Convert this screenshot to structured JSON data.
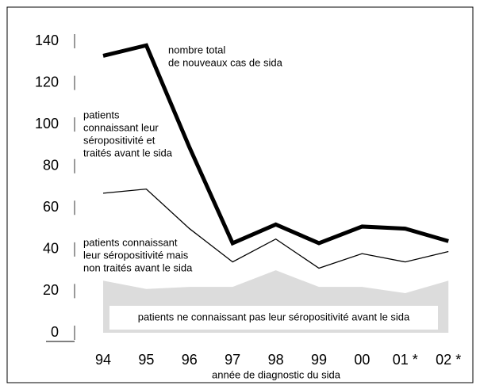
{
  "chart_data": {
    "type": "line",
    "categories": [
      "94",
      "95",
      "96",
      "97",
      "98",
      "99",
      "00",
      "01 *",
      "02 *"
    ],
    "x_label": "année de diagnostic du sida",
    "ylim": [
      0,
      140
    ],
    "yticks": [
      0,
      20,
      40,
      60,
      80,
      100,
      120,
      140
    ],
    "series": [
      {
        "color": "#000000",
        "width": 5,
        "values": [
          133,
          138,
          89,
          43,
          52,
          43,
          51,
          50,
          44
        ]
      },
      {
        "color": "#000000",
        "width": 1.3,
        "values": [
          67,
          69,
          50,
          34,
          45,
          31,
          38,
          34,
          39
        ]
      },
      {
        "color": "#dcdcdc",
        "fill": true,
        "values": [
          25,
          21,
          22,
          22,
          30,
          22,
          22,
          19,
          25
        ]
      }
    ],
    "annotations": [
      {
        "lines": [
          "nombre total",
          "de nouveaux cas de sida"
        ]
      },
      {
        "lines": [
          "patients",
          "connaissant leur",
          "séropositivité et",
          "traités avant le sida"
        ]
      },
      {
        "lines": [
          "patients connaissant",
          "leur séropositivité mais",
          "non traités avant le sida"
        ]
      },
      {
        "lines": [
          "patients ne connaissant pas leur séropositivité avant le sida"
        ]
      }
    ]
  }
}
